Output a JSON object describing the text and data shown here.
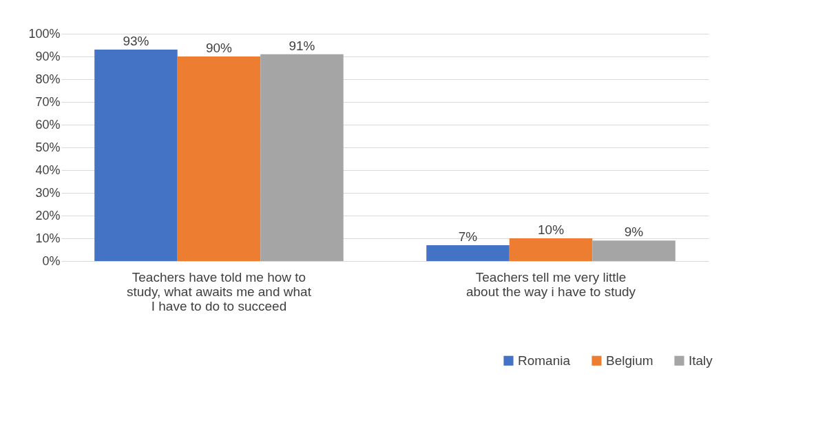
{
  "chart_data": {
    "type": "bar",
    "categories": [
      "Teachers have told me how to study, what awaits me and what I have to do to succeed",
      "Teachers tell me very little about the way i have to study"
    ],
    "series": [
      {
        "name": "Romania",
        "color": "#4472c4",
        "values": [
          93,
          7
        ],
        "value_labels": [
          "93%",
          "7%"
        ]
      },
      {
        "name": "Belgium",
        "color": "#ed7d31",
        "values": [
          90,
          10
        ],
        "value_labels": [
          "90%",
          "10%"
        ]
      },
      {
        "name": "Italy",
        "color": "#a5a5a5",
        "values": [
          91,
          9
        ],
        "value_labels": [
          "91%",
          "9%"
        ]
      }
    ],
    "ylim": [
      0,
      100
    ],
    "yticks": [
      {
        "value": 0,
        "label": "0%"
      },
      {
        "value": 10,
        "label": "10%"
      },
      {
        "value": 20,
        "label": "20%"
      },
      {
        "value": 30,
        "label": "30%"
      },
      {
        "value": 40,
        "label": "40%"
      },
      {
        "value": 50,
        "label": "50%"
      },
      {
        "value": 60,
        "label": "60%"
      },
      {
        "value": 70,
        "label": "70%"
      },
      {
        "value": 80,
        "label": "80%"
      },
      {
        "value": 90,
        "label": "90%"
      },
      {
        "value": 100,
        "label": "100%"
      }
    ],
    "grid": "y",
    "legend": "bottom right"
  }
}
